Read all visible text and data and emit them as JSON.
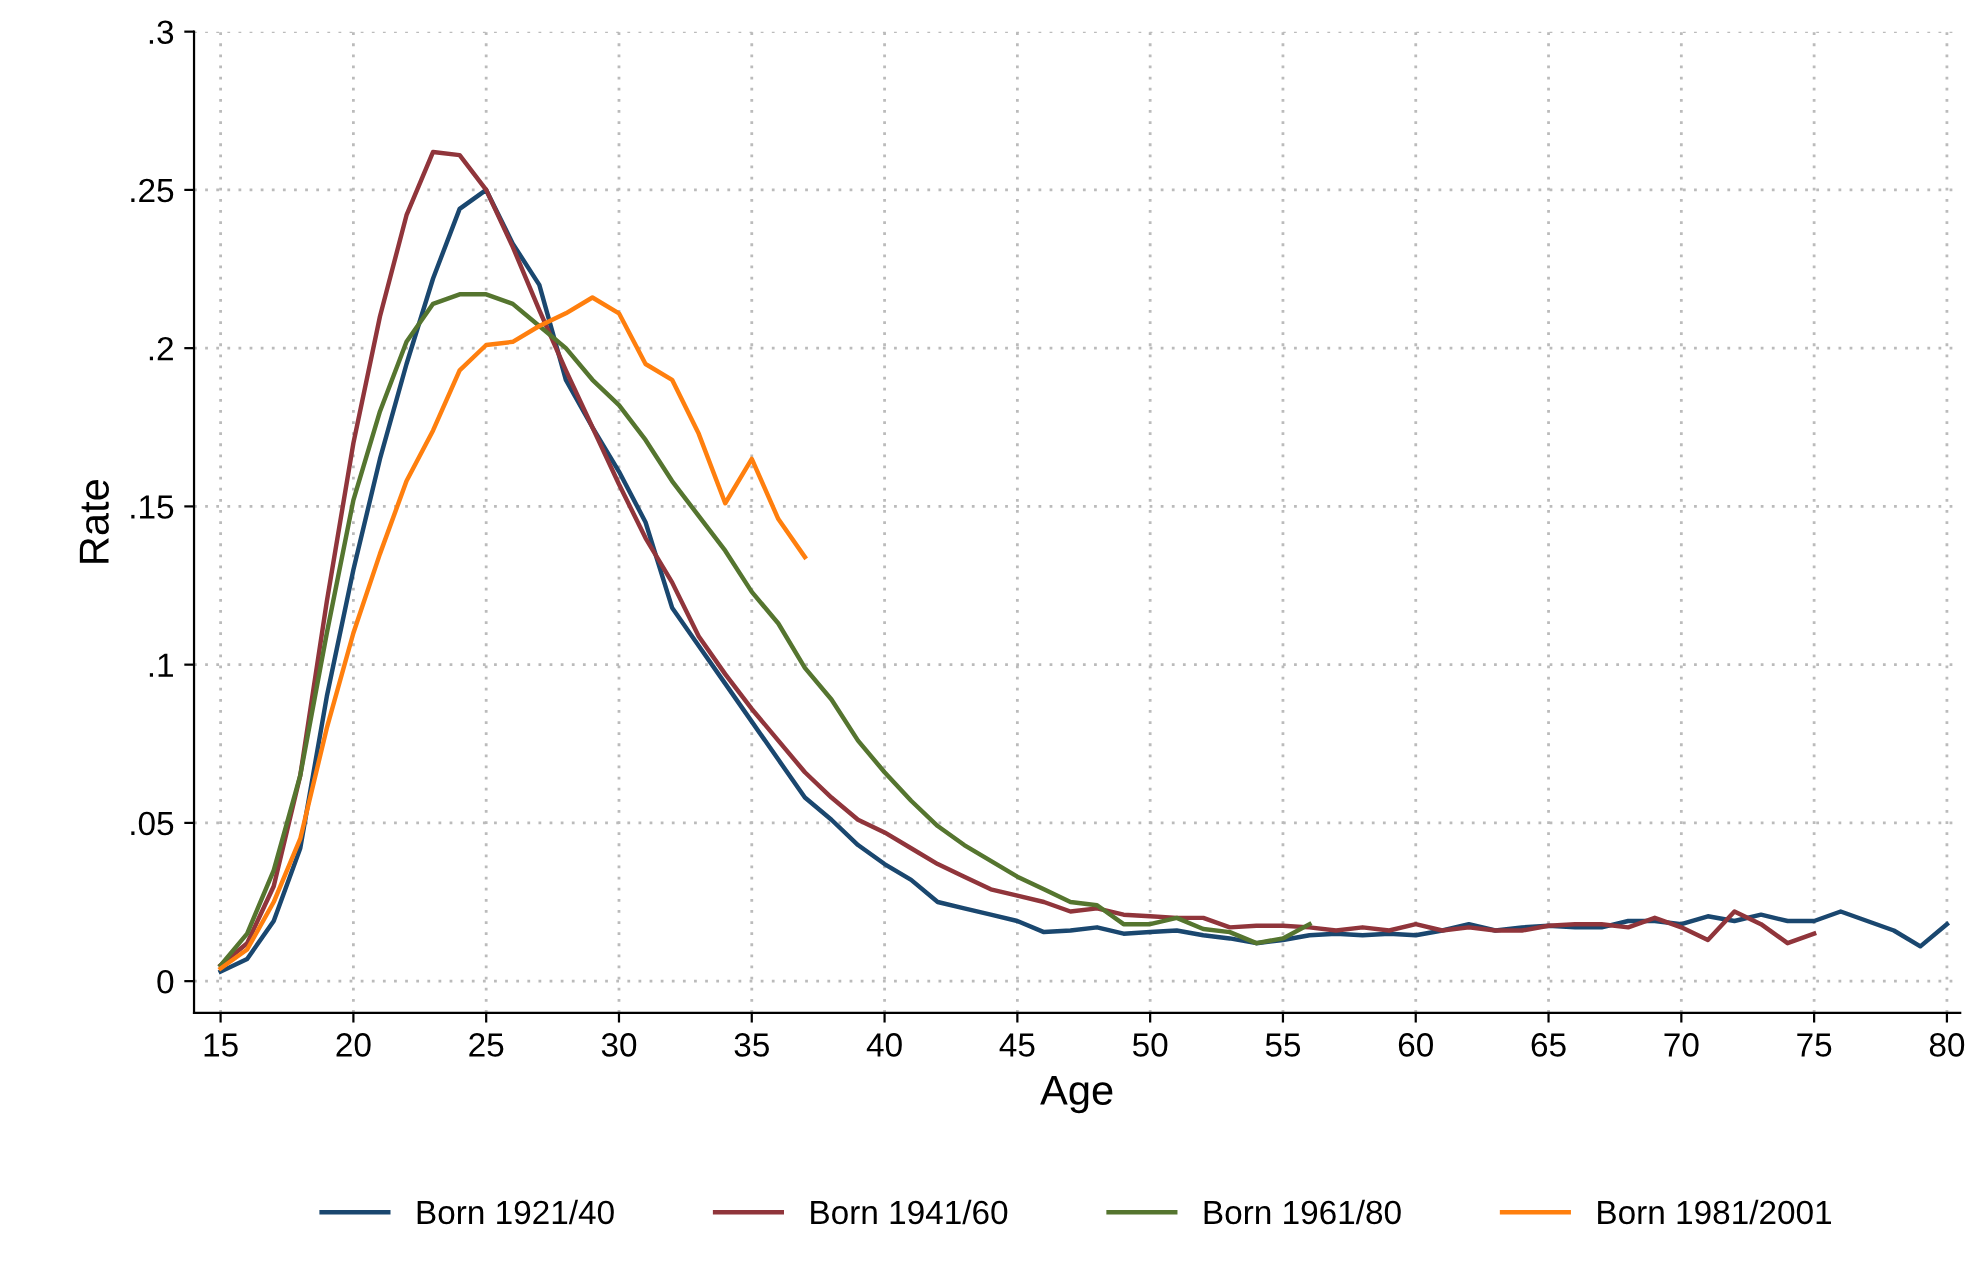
{
  "chart_data": {
    "type": "line",
    "xlabel": "Age",
    "ylabel": "Rate",
    "xlim": [
      14,
      80.5
    ],
    "xticks": [
      15,
      20,
      25,
      30,
      35,
      40,
      45,
      50,
      55,
      60,
      65,
      70,
      75,
      80
    ],
    "ylim": [
      -0.01,
      0.3
    ],
    "yticks": [
      {
        "value": 0,
        "label": "0"
      },
      {
        "value": 0.05,
        "label": ".05"
      },
      {
        "value": 0.1,
        "label": ".1"
      },
      {
        "value": 0.15,
        "label": ".15"
      },
      {
        "value": 0.2,
        "label": ".2"
      },
      {
        "value": 0.25,
        "label": ".25"
      },
      {
        "value": 0.3,
        "label": ".3"
      }
    ],
    "grid": true,
    "legend": "bottom",
    "marker": "none",
    "line_style": "solid",
    "series": [
      {
        "name": "Born 1921/40",
        "color": "#1a476f",
        "x": [
          15,
          16,
          17,
          18,
          19,
          20,
          21,
          22,
          23,
          24,
          25,
          26,
          27,
          28,
          29,
          30,
          31,
          32,
          33,
          34,
          35,
          36,
          37,
          38,
          39,
          40,
          41,
          42,
          43,
          44,
          45,
          46,
          47,
          48,
          49,
          50,
          51,
          52,
          53,
          54,
          55,
          56,
          57,
          58,
          59,
          60,
          61,
          62,
          63,
          64,
          65,
          66,
          67,
          68,
          69,
          70,
          71,
          72,
          73,
          74,
          75,
          76,
          77,
          78,
          79,
          80
        ],
        "values": [
          0.003,
          0.007,
          0.019,
          0.042,
          0.09,
          0.13,
          0.165,
          0.195,
          0.222,
          0.244,
          0.25,
          0.233,
          0.22,
          0.19,
          0.175,
          0.161,
          0.145,
          0.118,
          0.106,
          0.094,
          0.082,
          0.07,
          0.058,
          0.051,
          0.043,
          0.037,
          0.032,
          0.025,
          0.023,
          0.021,
          0.019,
          0.0155,
          0.016,
          0.017,
          0.015,
          0.0155,
          0.016,
          0.0145,
          0.0135,
          0.012,
          0.013,
          0.0145,
          0.015,
          0.0145,
          0.015,
          0.0145,
          0.016,
          0.018,
          0.016,
          0.017,
          0.0175,
          0.017,
          0.017,
          0.019,
          0.019,
          0.018,
          0.0205,
          0.019,
          0.021,
          0.019,
          0.019,
          0.022,
          0.019,
          0.016,
          0.011,
          0.018
        ]
      },
      {
        "name": "Born 1941/60",
        "color": "#90353b",
        "x": [
          15,
          16,
          17,
          18,
          19,
          20,
          21,
          22,
          23,
          24,
          25,
          26,
          27,
          28,
          29,
          30,
          31,
          32,
          33,
          34,
          35,
          36,
          37,
          38,
          39,
          40,
          41,
          42,
          43,
          44,
          45,
          46,
          47,
          48,
          49,
          50,
          51,
          52,
          53,
          54,
          55,
          56,
          57,
          58,
          59,
          60,
          61,
          62,
          63,
          64,
          65,
          66,
          67,
          68,
          69,
          70,
          71,
          72,
          73,
          74,
          75
        ],
        "values": [
          0.005,
          0.012,
          0.03,
          0.065,
          0.12,
          0.17,
          0.21,
          0.242,
          0.262,
          0.261,
          0.25,
          0.232,
          0.212,
          0.193,
          0.175,
          0.157,
          0.14,
          0.126,
          0.109,
          0.097,
          0.086,
          0.076,
          0.066,
          0.058,
          0.051,
          0.047,
          0.042,
          0.037,
          0.033,
          0.029,
          0.027,
          0.025,
          0.022,
          0.023,
          0.021,
          0.0205,
          0.02,
          0.02,
          0.017,
          0.0175,
          0.0175,
          0.017,
          0.016,
          0.017,
          0.016,
          0.018,
          0.016,
          0.017,
          0.016,
          0.016,
          0.0175,
          0.018,
          0.018,
          0.017,
          0.02,
          0.017,
          0.013,
          0.022,
          0.018,
          0.012,
          0.015
        ]
      },
      {
        "name": "Born 1961/80",
        "color": "#55752f",
        "x": [
          15,
          16,
          17,
          18,
          19,
          20,
          21,
          22,
          23,
          24,
          25,
          26,
          27,
          28,
          29,
          30,
          31,
          32,
          33,
          34,
          35,
          36,
          37,
          38,
          39,
          40,
          41,
          42,
          43,
          44,
          45,
          46,
          47,
          48,
          49,
          50,
          51,
          52,
          53,
          54,
          55,
          56
        ],
        "values": [
          0.005,
          0.015,
          0.035,
          0.065,
          0.11,
          0.152,
          0.18,
          0.202,
          0.214,
          0.217,
          0.217,
          0.214,
          0.207,
          0.2,
          0.19,
          0.182,
          0.171,
          0.158,
          0.147,
          0.136,
          0.123,
          0.113,
          0.099,
          0.089,
          0.076,
          0.066,
          0.057,
          0.049,
          0.043,
          0.038,
          0.033,
          0.029,
          0.025,
          0.024,
          0.018,
          0.018,
          0.02,
          0.0165,
          0.0155,
          0.012,
          0.0135,
          0.018
        ]
      },
      {
        "name": "Born 1981/2001",
        "color": "#ff7f0e",
        "x": [
          15,
          16,
          17,
          18,
          19,
          20,
          21,
          22,
          23,
          24,
          25,
          26,
          27,
          28,
          29,
          30,
          31,
          32,
          33,
          34,
          35,
          36,
          37
        ],
        "values": [
          0.004,
          0.01,
          0.025,
          0.045,
          0.08,
          0.11,
          0.135,
          0.158,
          0.174,
          0.193,
          0.201,
          0.202,
          0.207,
          0.211,
          0.216,
          0.211,
          0.195,
          0.19,
          0.173,
          0.151,
          0.165,
          0.146,
          0.134
        ]
      }
    ]
  }
}
